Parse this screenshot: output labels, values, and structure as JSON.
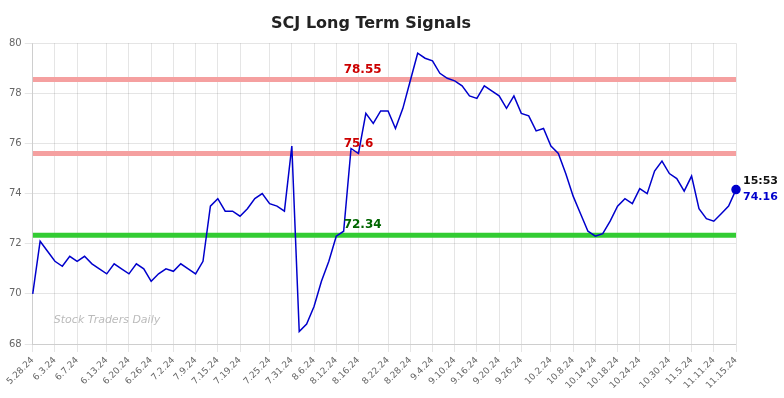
{
  "chart_data": {
    "type": "line",
    "title": "SCJ Long Term Signals",
    "categories": [
      "5.28.24",
      null,
      null,
      "6.3.24",
      null,
      null,
      "6.7.24",
      null,
      null,
      null,
      "6.13.24",
      null,
      null,
      "6.20.24",
      null,
      null,
      "6.26.24",
      null,
      null,
      "7.2.24",
      null,
      null,
      "7.9.24",
      null,
      null,
      "7.15.24",
      null,
      null,
      "7.19.24",
      null,
      null,
      null,
      "7.25.24",
      null,
      null,
      "7.31.24",
      null,
      null,
      "8.6.24",
      null,
      null,
      "8.12.24",
      null,
      null,
      "8.16.24",
      null,
      null,
      null,
      "8.22.24",
      null,
      null,
      "8.28.24",
      null,
      null,
      "9.4.24",
      null,
      null,
      "9.10.24",
      null,
      null,
      "9.16.24",
      null,
      null,
      "9.20.24",
      null,
      null,
      "9.26.24",
      null,
      null,
      null,
      "10.2.24",
      null,
      null,
      "10.8.24",
      null,
      null,
      "10.14.24",
      null,
      null,
      "10.18.24",
      null,
      null,
      "10.24.24",
      null,
      null,
      null,
      "10.30.24",
      null,
      null,
      "11.5.24",
      null,
      null,
      "11.11.24",
      null,
      null,
      "11.15.24"
    ],
    "values": [
      70.0,
      72.1,
      71.7,
      71.3,
      71.1,
      71.5,
      71.3,
      71.5,
      71.2,
      71.0,
      70.8,
      71.2,
      71.0,
      70.8,
      71.2,
      71.0,
      70.5,
      70.8,
      71.0,
      70.9,
      71.2,
      71.0,
      70.8,
      71.3,
      73.5,
      73.8,
      73.3,
      73.3,
      73.1,
      73.4,
      73.8,
      74.0,
      73.6,
      73.5,
      73.3,
      75.9,
      68.5,
      68.8,
      69.5,
      70.5,
      71.3,
      72.3,
      72.5,
      75.8,
      75.6,
      77.2,
      76.8,
      77.3,
      77.3,
      76.6,
      77.4,
      78.5,
      79.6,
      79.4,
      79.3,
      78.8,
      78.6,
      78.5,
      78.3,
      77.9,
      77.8,
      78.3,
      78.1,
      77.9,
      77.4,
      77.9,
      77.2,
      77.1,
      76.5,
      76.6,
      75.9,
      75.6,
      74.8,
      73.9,
      73.2,
      72.5,
      72.3,
      72.4,
      72.9,
      73.5,
      73.8,
      73.6,
      74.2,
      74.0,
      74.9,
      75.3,
      74.8,
      74.6,
      74.1,
      74.7,
      73.4,
      73.0,
      72.9,
      73.2,
      73.5,
      74.16
    ],
    "color": "#0000cc",
    "ylim": [
      68,
      80
    ],
    "yticks": [
      68,
      70,
      72,
      74,
      76,
      78,
      80
    ],
    "grid": true,
    "hlines": [
      {
        "value": 78.55,
        "color": "#f5a0a0",
        "label": "78.55",
        "label_color": "#cc0000"
      },
      {
        "value": 75.6,
        "color": "#f5a0a0",
        "label": "75.6",
        "label_color": "#cc0000"
      },
      {
        "value": 72.34,
        "color": "#33cc33",
        "label": "72.34",
        "label_color": "#006600"
      }
    ],
    "last_label": {
      "text": "15:53",
      "value": 74.16
    },
    "watermark": "Stock Traders Daily"
  }
}
